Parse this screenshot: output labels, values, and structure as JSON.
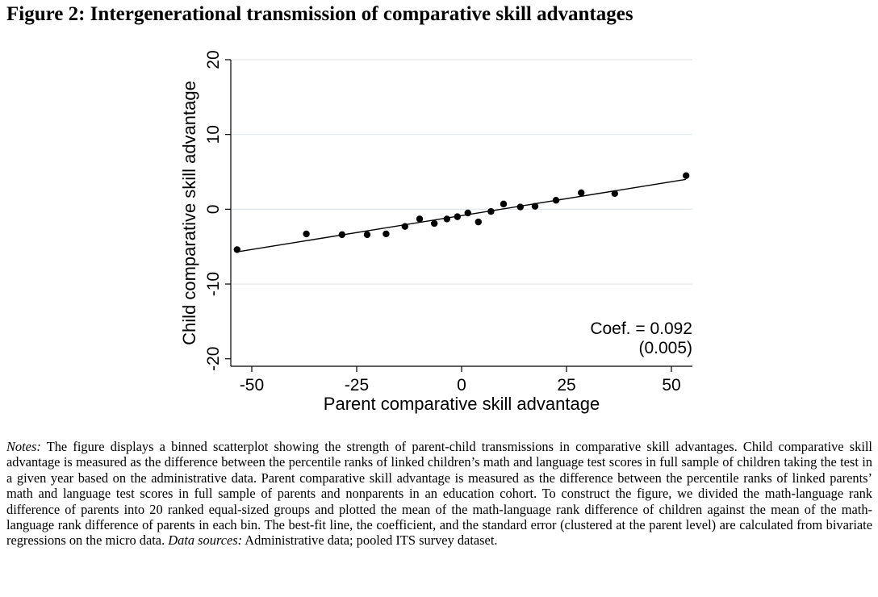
{
  "figure": {
    "title": "Figure 2: Intergenerational transmission of comparative skill advantages"
  },
  "chart_data": {
    "type": "scatter",
    "xlabel": "Parent comparative skill advantage",
    "ylabel": "Child comparative skill advantage",
    "xlim": [
      -55,
      55
    ],
    "ylim": [
      -21,
      20
    ],
    "xticks": [
      -50,
      -25,
      0,
      25,
      50
    ],
    "yticks": [
      -20,
      -10,
      0,
      10,
      20
    ],
    "grid": "horizontal",
    "points": [
      {
        "x": -53.5,
        "y": -5.4
      },
      {
        "x": -37.0,
        "y": -3.3
      },
      {
        "x": -28.5,
        "y": -3.4
      },
      {
        "x": -22.5,
        "y": -3.4
      },
      {
        "x": -18.0,
        "y": -3.3
      },
      {
        "x": -13.5,
        "y": -2.3
      },
      {
        "x": -10.0,
        "y": -1.3
      },
      {
        "x": -6.5,
        "y": -1.9
      },
      {
        "x": -3.5,
        "y": -1.3
      },
      {
        "x": -1.0,
        "y": -1.0
      },
      {
        "x": 1.5,
        "y": -0.5
      },
      {
        "x": 4.0,
        "y": -1.7
      },
      {
        "x": 7.0,
        "y": -0.3
      },
      {
        "x": 10.0,
        "y": 0.7
      },
      {
        "x": 14.0,
        "y": 0.3
      },
      {
        "x": 17.5,
        "y": 0.4
      },
      {
        "x": 22.5,
        "y": 1.2
      },
      {
        "x": 28.5,
        "y": 2.2
      },
      {
        "x": 36.5,
        "y": 2.1
      },
      {
        "x": 53.5,
        "y": 4.5
      }
    ],
    "fit_line": {
      "x": [
        -53.5,
        53.5
      ],
      "y": [
        -5.7,
        4.0
      ]
    },
    "annotation": {
      "coef": "Coef. = 0.092",
      "se": "(0.005)"
    }
  },
  "notes": {
    "label": "Notes:",
    "text": " The figure displays a binned scatterplot showing the strength of parent-child transmissions in comparative skill advantages. Child comparative skill advantage is measured as the difference between the percentile ranks of linked children’s math and language test scores in full sample of children taking the test in a given year based on the administrative data. Parent comparative skill advantage is measured as the difference between the percentile ranks of linked parents’ math and language test scores in full sample of parents and nonparents in an education cohort. To construct the figure, we divided the math-language rank difference of parents into 20 ranked equal-sized groups and plotted the mean of the math-language rank difference of children against the mean of the math-language rank difference of parents in each bin. The best-fit line, the coefficient, and the standard error (clustered at the parent level) are calculated from bivariate regressions on the micro data.",
    "sources_label": "Data sources:",
    "sources_text": " Administrative data; pooled ITS survey dataset."
  }
}
